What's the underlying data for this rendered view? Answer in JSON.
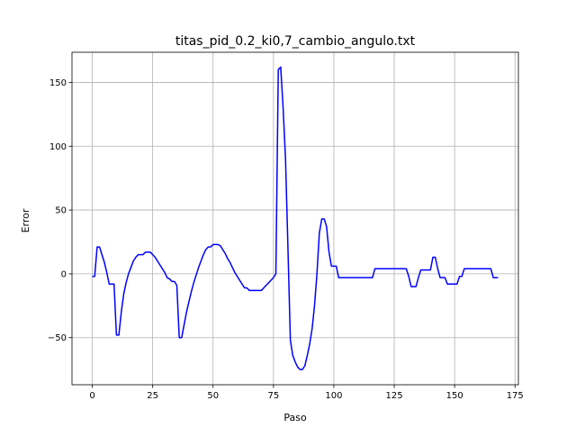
{
  "chart_data": {
    "type": "line",
    "title": "titas_pid_0.2_ki0,7_cambio_angulo.txt",
    "xlabel": "Paso",
    "ylabel": "Error",
    "xlim": [
      -8.4,
      176.4
    ],
    "ylim": [
      -86.9,
      173.6
    ],
    "xticks": [
      0,
      25,
      50,
      75,
      100,
      125,
      150,
      175
    ],
    "yticks": [
      -50,
      0,
      50,
      100,
      150
    ],
    "xtick_labels": [
      "0",
      "25",
      "50",
      "75",
      "100",
      "125",
      "150",
      "175"
    ],
    "ytick_labels": [
      "−50",
      "0",
      "50",
      "100",
      "150"
    ],
    "grid": true,
    "line_color": "#0000ff",
    "grid_color": "#b0b0b0",
    "series": [
      {
        "x": [
          0,
          1,
          2,
          3,
          4,
          5,
          6,
          7,
          8,
          9,
          10,
          11,
          12,
          13,
          14,
          15,
          16,
          17,
          18,
          19,
          20,
          21,
          22,
          23,
          24,
          25,
          26,
          27,
          28,
          29,
          30,
          31,
          32,
          33,
          34,
          35,
          36,
          37,
          38,
          39,
          40,
          41,
          42,
          43,
          44,
          45,
          46,
          47,
          48,
          49,
          50,
          51,
          52,
          53,
          54,
          55,
          56,
          57,
          58,
          59,
          60,
          61,
          62,
          63,
          64,
          65,
          66,
          67,
          68,
          69,
          70,
          71,
          72,
          73,
          74,
          75,
          76,
          77,
          78,
          79,
          80,
          81,
          82,
          83,
          84,
          85,
          86,
          87,
          88,
          89,
          90,
          91,
          92,
          93,
          94,
          95,
          96,
          97,
          98,
          99,
          100,
          101,
          102,
          103,
          104,
          105,
          106,
          107,
          108,
          109,
          110,
          111,
          112,
          113,
          114,
          115,
          116,
          117,
          118,
          119,
          120,
          121,
          122,
          123,
          124,
          125,
          126,
          127,
          128,
          129,
          130,
          131,
          132,
          133,
          134,
          135,
          136,
          137,
          138,
          139,
          140,
          141,
          142,
          143,
          144,
          145,
          146,
          147,
          148,
          149,
          150,
          151,
          152,
          153,
          154,
          155,
          156,
          157,
          158,
          159,
          160,
          161,
          162,
          163,
          164,
          165,
          166,
          167,
          168
        ],
        "y": [
          -2,
          -2,
          21,
          21,
          15,
          9,
          1,
          -8,
          -8,
          -8,
          -48,
          -48,
          -30,
          -16,
          -7,
          0,
          5,
          10,
          13,
          15,
          15,
          15,
          17,
          17,
          17,
          15,
          13,
          10,
          7,
          4,
          1,
          -3,
          -4,
          -6,
          -6,
          -9,
          -50,
          -50,
          -40,
          -30,
          -22,
          -14,
          -7,
          -1,
          5,
          10,
          15,
          19,
          21,
          21,
          23,
          23,
          23,
          22,
          19,
          16,
          12,
          9,
          5,
          1,
          -2,
          -5,
          -8,
          -11,
          -11,
          -13,
          -13,
          -13,
          -13,
          -13,
          -13,
          -11,
          -9,
          -7,
          -5,
          -3,
          0,
          160,
          162,
          130,
          90,
          20,
          -52,
          -64,
          -69,
          -73,
          -75,
          -75,
          -72,
          -64,
          -55,
          -43,
          -25,
          0,
          32,
          43,
          43,
          37,
          17,
          6,
          6,
          6,
          -3,
          -3,
          -3,
          -3,
          -3,
          -3,
          -3,
          -3,
          -3,
          -3,
          -3,
          -3,
          -3,
          -3,
          -3,
          4,
          4,
          4,
          4,
          4,
          4,
          4,
          4,
          4,
          4,
          4,
          4,
          4,
          4,
          -2,
          -10,
          -10,
          -10,
          -3,
          3,
          3,
          3,
          3,
          3,
          13,
          13,
          4,
          -3,
          -3,
          -3,
          -8,
          -8,
          -8,
          -8,
          -8,
          -2,
          -2,
          4,
          4,
          4,
          4,
          4,
          4,
          4,
          4,
          4,
          4,
          4,
          4,
          -3,
          -3,
          -3
        ]
      }
    ]
  }
}
